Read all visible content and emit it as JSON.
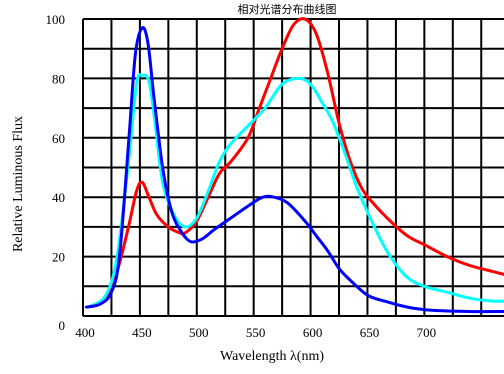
{
  "chart_data": {
    "type": "line",
    "title": "相对光谱分布曲线图",
    "xlabel": "Wavelength λ(nm)",
    "ylabel": "Relative Luminous Flux",
    "xlim": [
      400,
      770
    ],
    "ylim": [
      0,
      100
    ],
    "x_ticks": [
      "400",
      "450",
      "500",
      "550",
      "600",
      "650",
      "700"
    ],
    "y_ticks": [
      "0",
      "20",
      "40",
      "60",
      "80",
      "100"
    ],
    "grid": true,
    "legend": "none",
    "series": [
      {
        "color": "#ff0000",
        "points": [
          [
            405,
            3
          ],
          [
            420,
            6
          ],
          [
            430,
            15
          ],
          [
            440,
            30
          ],
          [
            447,
            42
          ],
          [
            452,
            45
          ],
          [
            458,
            40
          ],
          [
            465,
            34
          ],
          [
            475,
            30
          ],
          [
            485,
            28
          ],
          [
            490,
            28
          ],
          [
            500,
            32
          ],
          [
            510,
            40
          ],
          [
            520,
            48
          ],
          [
            530,
            52
          ],
          [
            545,
            60
          ],
          [
            555,
            70
          ],
          [
            565,
            80
          ],
          [
            575,
            90
          ],
          [
            585,
            98
          ],
          [
            595,
            100
          ],
          [
            605,
            95
          ],
          [
            615,
            82
          ],
          [
            625,
            65
          ],
          [
            635,
            52
          ],
          [
            645,
            43
          ],
          [
            655,
            38
          ],
          [
            670,
            32
          ],
          [
            685,
            27
          ],
          [
            700,
            24
          ],
          [
            720,
            20
          ],
          [
            740,
            17
          ],
          [
            760,
            15
          ],
          [
            770,
            14
          ]
        ]
      },
      {
        "color": "#00ffff",
        "points": [
          [
            405,
            3
          ],
          [
            420,
            7
          ],
          [
            430,
            20
          ],
          [
            440,
            52
          ],
          [
            447,
            78
          ],
          [
            452,
            81
          ],
          [
            458,
            79
          ],
          [
            463,
            66
          ],
          [
            470,
            45
          ],
          [
            480,
            34
          ],
          [
            490,
            30
          ],
          [
            500,
            33
          ],
          [
            510,
            42
          ],
          [
            520,
            52
          ],
          [
            530,
            58
          ],
          [
            545,
            64
          ],
          [
            560,
            70
          ],
          [
            575,
            78
          ],
          [
            590,
            80
          ],
          [
            600,
            78
          ],
          [
            610,
            72
          ],
          [
            620,
            65
          ],
          [
            630,
            55
          ],
          [
            640,
            44
          ],
          [
            650,
            35
          ],
          [
            660,
            27
          ],
          [
            670,
            20
          ],
          [
            685,
            13
          ],
          [
            700,
            10
          ],
          [
            720,
            8
          ],
          [
            740,
            6
          ],
          [
            760,
            5
          ],
          [
            770,
            5
          ]
        ]
      },
      {
        "color": "#0000ff",
        "points": [
          [
            403,
            3
          ],
          [
            415,
            4
          ],
          [
            425,
            8
          ],
          [
            432,
            20
          ],
          [
            440,
            58
          ],
          [
            446,
            88
          ],
          [
            452,
            97
          ],
          [
            457,
            92
          ],
          [
            462,
            75
          ],
          [
            470,
            50
          ],
          [
            478,
            35
          ],
          [
            487,
            28
          ],
          [
            495,
            25
          ],
          [
            505,
            26
          ],
          [
            515,
            29
          ],
          [
            530,
            33
          ],
          [
            545,
            37
          ],
          [
            558,
            40
          ],
          [
            568,
            40
          ],
          [
            580,
            38
          ],
          [
            595,
            32
          ],
          [
            605,
            27
          ],
          [
            615,
            22
          ],
          [
            625,
            16
          ],
          [
            635,
            12
          ],
          [
            650,
            7
          ],
          [
            665,
            5
          ],
          [
            685,
            3
          ],
          [
            705,
            2
          ],
          [
            740,
            1.5
          ],
          [
            770,
            1.5
          ]
        ]
      }
    ]
  }
}
